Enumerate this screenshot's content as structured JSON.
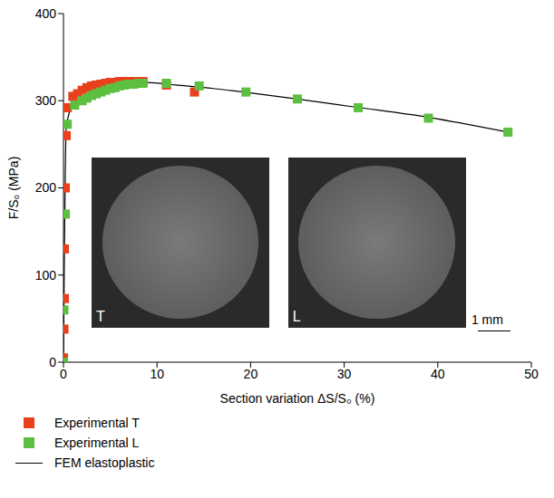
{
  "chart_data": {
    "type": "scatter",
    "x_label": "Section variation ΔS/S₀ (%)",
    "y_label": "F/S₀ (MPa)",
    "xlim": [
      0,
      50
    ],
    "ylim": [
      0,
      400
    ],
    "xticks": [
      0,
      10,
      20,
      30,
      40,
      50
    ],
    "yticks": [
      0,
      100,
      200,
      300,
      400
    ],
    "legend": "bottom",
    "series": [
      {
        "name": "Experimental T",
        "type": "scatter",
        "marker": "square",
        "color": "#e8401c",
        "x": [
          0,
          0,
          0.05,
          0.1,
          0.1,
          0.2,
          0.3,
          0.4,
          1,
          1.5,
          2,
          2.5,
          3,
          3.5,
          4,
          4.5,
          5,
          5.5,
          6,
          6.5,
          7,
          7.5,
          8,
          8.5,
          11,
          14
        ],
        "values": [
          0,
          5,
          38,
          73,
          130,
          200,
          260,
          292,
          305,
          308,
          312,
          315,
          317,
          318,
          319,
          320,
          321,
          321,
          322,
          322,
          322,
          322,
          322,
          322,
          318,
          310
        ]
      },
      {
        "name": "Experimental L",
        "type": "scatter",
        "marker": "square",
        "color": "#5cbf3f",
        "x": [
          0,
          0.05,
          0.2,
          0.4,
          1.2,
          2,
          2.5,
          3,
          3.5,
          4,
          4.5,
          5,
          5.5,
          6,
          6.5,
          7,
          7.5,
          8,
          8.5,
          11,
          14.5,
          19.5,
          25,
          31.5,
          39,
          47.5
        ],
        "values": [
          0,
          60,
          170,
          273,
          295,
          300,
          303,
          306,
          308,
          310,
          312,
          314,
          315,
          317,
          318,
          319,
          319,
          320,
          320,
          320,
          317,
          310,
          302,
          292,
          280,
          264
        ]
      },
      {
        "name": "FEM elastoplastic",
        "type": "line",
        "line_style": "solid",
        "color": "#000000",
        "x": [
          0,
          0.3,
          1,
          3,
          6,
          9,
          12,
          16,
          20,
          25,
          31,
          39,
          47.5
        ],
        "values": [
          0,
          270,
          295,
          308,
          318,
          321,
          318,
          314,
          309,
          302,
          293,
          281,
          264
        ]
      }
    ],
    "annotations": [
      {
        "text": "T"
      },
      {
        "text": "L"
      },
      {
        "text": "1 mm"
      }
    ]
  }
}
